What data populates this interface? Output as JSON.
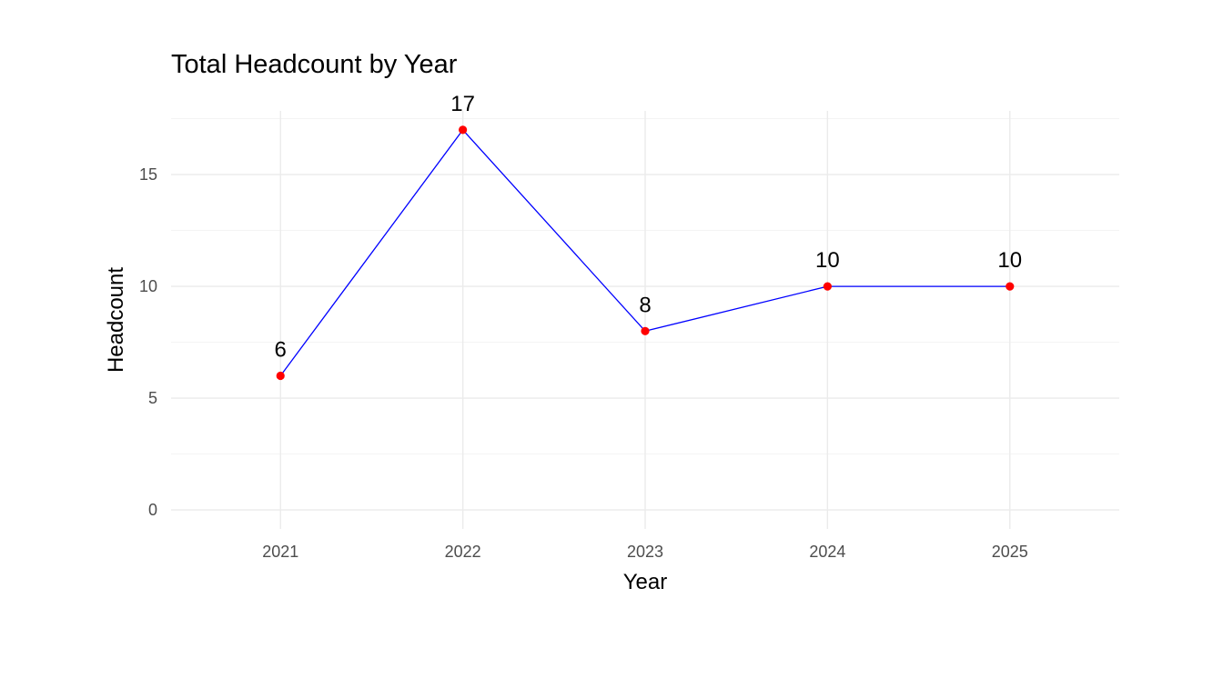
{
  "chart_data": {
    "type": "line",
    "title": "Total Headcount by Year",
    "xlabel": "Year",
    "ylabel": "Headcount",
    "categories": [
      "2021",
      "2022",
      "2023",
      "2024",
      "2025"
    ],
    "values": [
      6,
      17,
      8,
      10,
      10
    ],
    "data_labels": [
      "6",
      "17",
      "8",
      "10",
      "10"
    ],
    "y_ticks": [
      0,
      5,
      10,
      15
    ],
    "y_tick_labels": [
      "0",
      "5",
      "10",
      "15"
    ],
    "ylim": [
      -0.85,
      17.85
    ],
    "grid": true,
    "legend": "none",
    "colors": {
      "line": "#0000ff",
      "points": "#ff0000",
      "grid_major": "#ebebeb",
      "grid_minor": "#f2f2f2"
    }
  }
}
